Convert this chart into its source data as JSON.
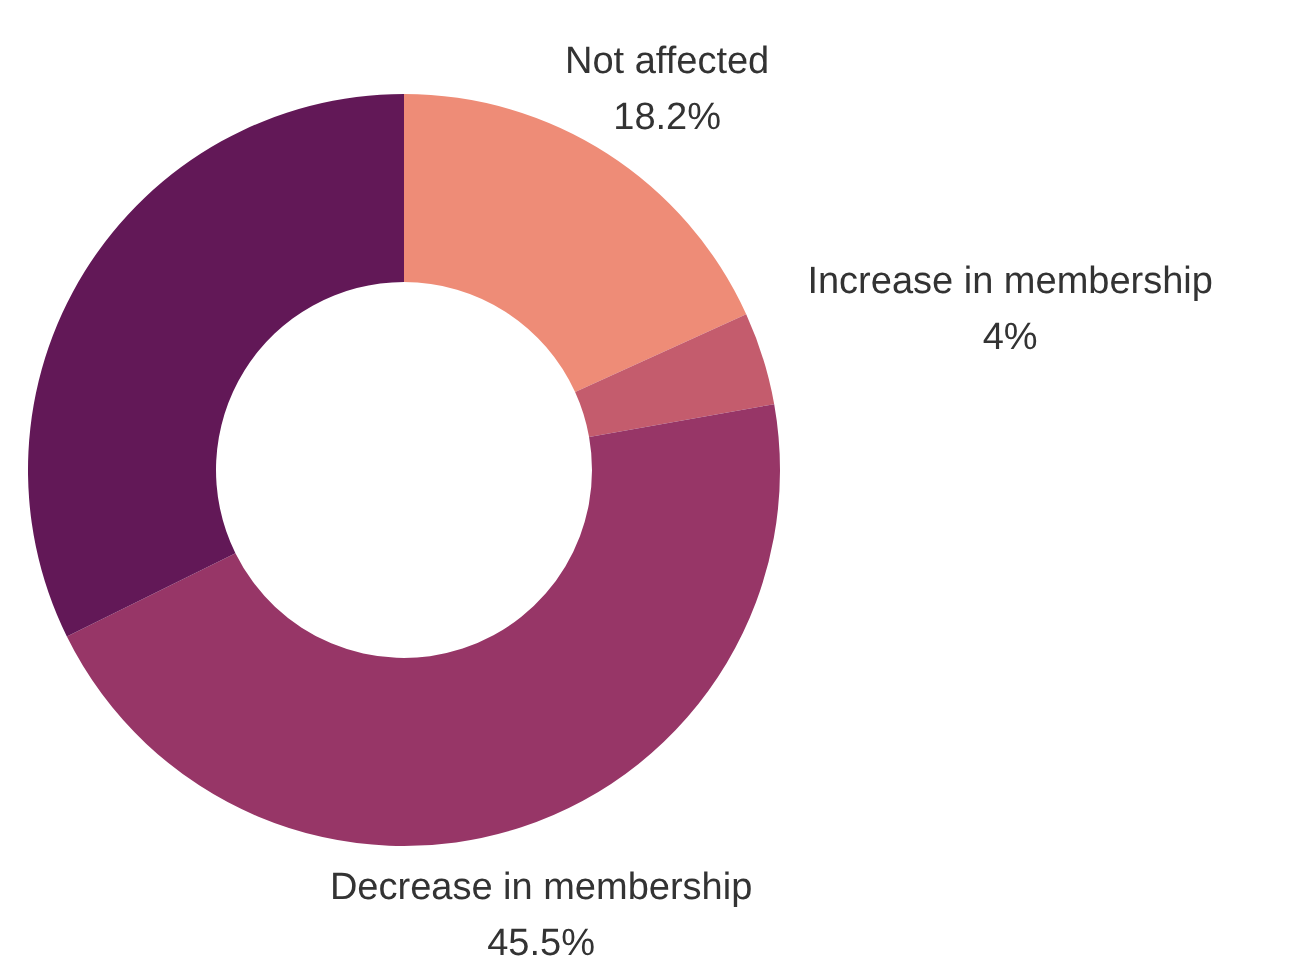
{
  "chart_data": {
    "type": "donut",
    "categories": [
      "Not affected",
      "Increase in membership",
      "Decrease in membership",
      null
    ],
    "values": [
      18.2,
      4,
      45.5,
      32.3
    ],
    "colors": [
      "#ee8c77",
      "#c45c6d",
      "#973667",
      "#621857"
    ],
    "value_labels": [
      "18.2%",
      "4%",
      "45.5%",
      null
    ]
  }
}
